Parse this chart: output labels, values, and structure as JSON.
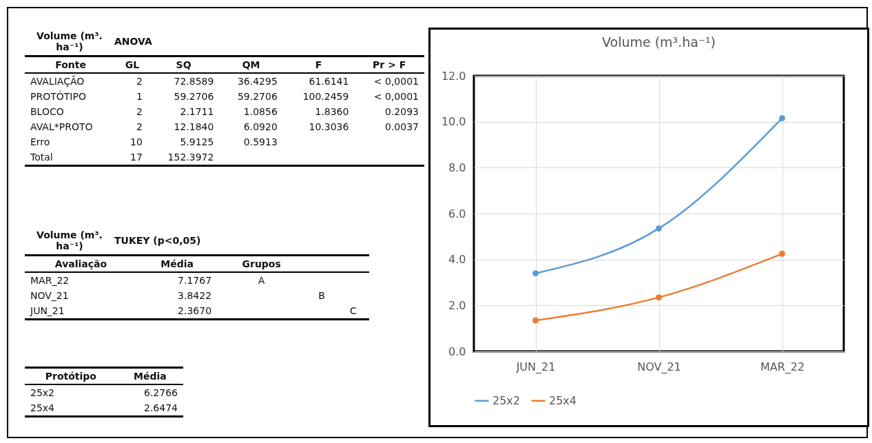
{
  "chart_data": [
    {
      "type": "other",
      "title": "ANOVA",
      "subtitle": "Volume (m³. ha⁻¹)",
      "annotations": [
        "Fonte\tGL\tSQ\tQM\tF\tPr > F",
        "AVALIAÇÃO\t2\t72.8589\t36.4295\t61.6141\t< 0,0001",
        "PROTÓTIPO\t1\t59.2706\t59.2706\t100.2459\t< 0,0001",
        "BLOCO\t2\t2.1711\t1.0856\t1.8360\t0.2093",
        "AVAL*PROTO\t2\t12.1840\t6.0920\t10.3036\t0.0037",
        "Erro\t10\t5.9125\t0.5913\t\t",
        "Total\t17\t152.3972\t\t\t"
      ]
    },
    {
      "type": "other",
      "title": "TUKEY (p<0,05)",
      "subtitle": "Volume (m³. ha⁻¹)",
      "annotations": [
        "Avaliação\tMédia\tGrupos\t\t",
        "MAR_22\t7.1767\tA\t\t",
        "NOV_21\t3.8422\t\tB\t",
        "JUN_21\t2.3670\t\t\tC"
      ]
    },
    {
      "type": "other",
      "annotations": [
        "Protótipo\tMédia",
        "25x2\t6.2766",
        "25x4\t2.6474"
      ]
    },
    {
      "type": "line",
      "title": "Volume (m³.ha⁻¹)",
      "categories": [
        "JUN_21",
        "NOV_21",
        "MAR_22"
      ],
      "series": [
        {
          "name": "25x2",
          "color": "#5b9bd5",
          "values": [
            3.4,
            5.35,
            10.15
          ]
        },
        {
          "name": "25x4",
          "color": "#ed7d31",
          "values": [
            1.35,
            2.35,
            4.25
          ]
        }
      ],
      "ylim": [
        0,
        12
      ],
      "yticks": [
        {
          "value": 0,
          "label": "0.0"
        },
        {
          "value": 2,
          "label": "2.0"
        },
        {
          "value": 4,
          "label": "4.0"
        },
        {
          "value": 6,
          "label": "6.0"
        },
        {
          "value": 8,
          "label": "8.0"
        },
        {
          "value": 10,
          "label": "10.0"
        },
        {
          "value": 12,
          "label": "12.0"
        }
      ],
      "grid": true,
      "legend": "bottom",
      "marker": "circle",
      "line_style": "solid"
    }
  ]
}
